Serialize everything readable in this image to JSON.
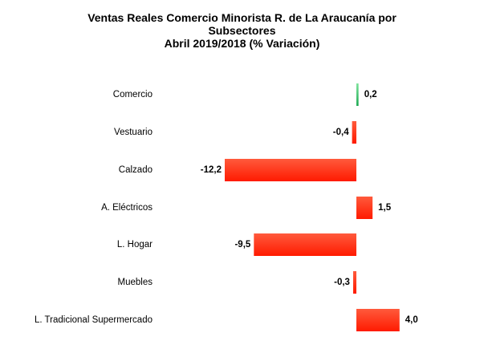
{
  "chart_data": {
    "type": "bar",
    "orientation": "horizontal",
    "title_lines": [
      "Ventas Reales Comercio Minorista R. de La Araucanía por",
      "Subsectores",
      "Abril  2019/2018 (% Variación)"
    ],
    "categories": [
      "Comercio",
      "Vestuario",
      "Calzado",
      "A. Eléctricos",
      "L. Hogar",
      "Muebles",
      "L. Tradicional Supermercado"
    ],
    "values": [
      0.2,
      -0.4,
      -12.2,
      1.5,
      -9.5,
      -0.3,
      4.0
    ],
    "value_labels": [
      "0,2",
      "-0,4",
      "-12,2",
      "1,5",
      "-9,5",
      "-0,3",
      "4,0"
    ],
    "colors": {
      "positive_total": "#2ecc71",
      "bar_top": "#ff5a3c",
      "bar_bottom": "#ff1a00"
    },
    "grid": false,
    "legend": "none"
  }
}
